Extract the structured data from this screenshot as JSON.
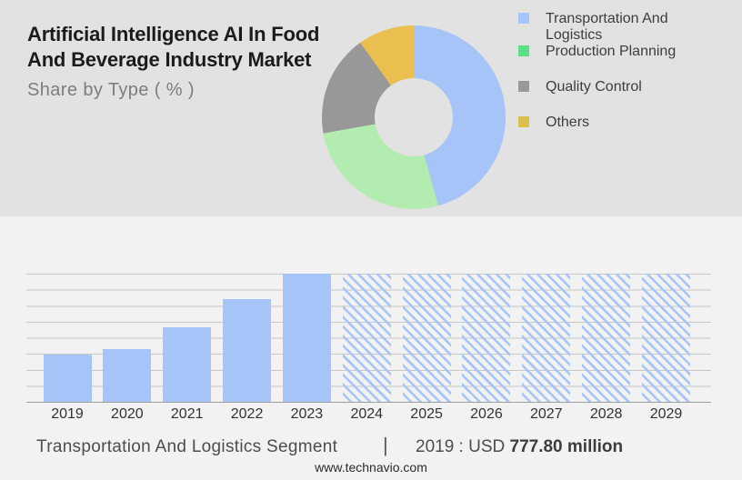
{
  "header": {
    "title_line1": "Artificial Intelligence AI In Food",
    "title_line2": "And Beverage Industry Market",
    "subtitle": "Share by Type ( % )"
  },
  "colors": {
    "top_background": "#e2e2e2",
    "bottom_background": "#f2f2f2",
    "accent_blue": "#a6c4f7",
    "gridline": "#c7c7c7",
    "axis_line": "#9e9e9e"
  },
  "chart_data": [
    {
      "type": "pie",
      "subtype": "donut",
      "title": "Share by Type ( % )",
      "start_angle_deg": 0,
      "legend_position": "right",
      "segments": [
        {
          "label": "Transportation And Logistics",
          "value_pct": 45.7,
          "color": "#a6c4f7",
          "legend_color": "#a6c4f7"
        },
        {
          "label": "Production Planning",
          "value_pct": 26.5,
          "color": "#b2ecb0",
          "legend_color": "#5ee082"
        },
        {
          "label": "Quality Control",
          "value_pct": 17.9,
          "color": "#989898",
          "legend_color": "#999999"
        },
        {
          "label": "Others",
          "value_pct": 9.9,
          "color": "#e9c04f",
          "legend_color": "#ddbf4d"
        }
      ]
    },
    {
      "type": "bar",
      "categories": [
        "2019",
        "2020",
        "2021",
        "2022",
        "2023",
        "2024",
        "2025",
        "2026",
        "2027",
        "2028",
        "2029"
      ],
      "values_pct_of_max_height": [
        37,
        41,
        58,
        80,
        100,
        100,
        100,
        100,
        100,
        100,
        100
      ],
      "bar_styles": [
        "solid",
        "solid",
        "solid",
        "solid",
        "solid",
        "hatched",
        "hatched",
        "hatched",
        "hatched",
        "hatched",
        "hatched"
      ],
      "bar_color": "#a6c4f7",
      "value_axis_labels_visible": false,
      "gridlines": true,
      "note": "hatched bars are forecast years"
    }
  ],
  "footer": {
    "segment_label": "Transportation And Logistics Segment",
    "separator": "|",
    "metric_prefix": "2019 : USD",
    "metric_value_bold": "777.80 million",
    "website": "www.technavio.com"
  }
}
